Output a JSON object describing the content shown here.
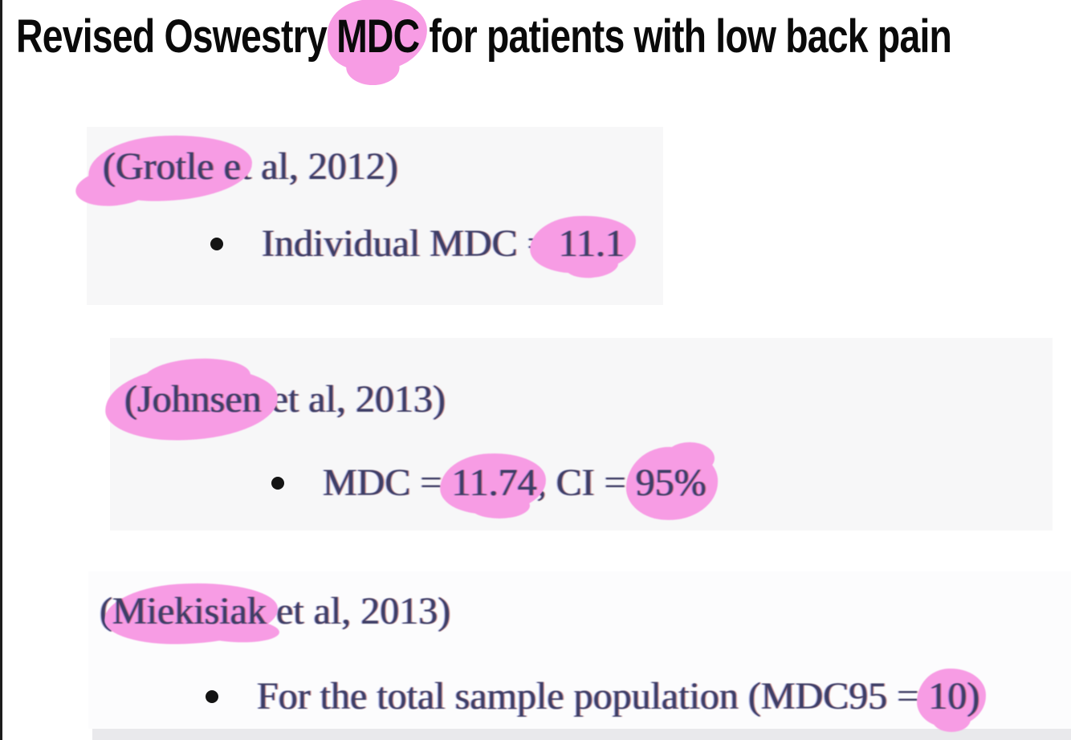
{
  "colors": {
    "highlight_pink": "#f79ce4",
    "serif_text": "#3e3e66",
    "title_text": "#0a0a0a",
    "screenshot_block_bg": "#f7f7f8",
    "bottom_bar": "#e9e9ec",
    "left_edge_line": "#1c1c1c",
    "bullet_dot": "#141414"
  },
  "title": {
    "pre": "Revised Oswestry ",
    "highlight": "MDC",
    "post": " for patients with low back pain"
  },
  "sections": [
    {
      "name": "grotle",
      "citation": {
        "pre": "",
        "highlight": "(Grotle e",
        "post": "t al, 2012)"
      },
      "bullet": {
        "pre": "Individual MDC = ",
        "highlight": "11.1",
        "post": ""
      }
    },
    {
      "name": "johnsen",
      "citation": {
        "pre": "",
        "highlight": "(Johnsen",
        "post": " et al, 2013)"
      },
      "bullet": {
        "pre": "MDC = ",
        "highlight1": "11.74",
        "mid": ", CI = ",
        "highlight2": "95%",
        "post": ""
      }
    },
    {
      "name": "miekisiak",
      "citation": {
        "pre": "(",
        "highlight": "Miekisiak",
        "post": " et al, 2013)"
      },
      "bullet": {
        "pre": "For the total sample population (MDC95 = ",
        "highlight": "10)",
        "post": ""
      }
    }
  ]
}
